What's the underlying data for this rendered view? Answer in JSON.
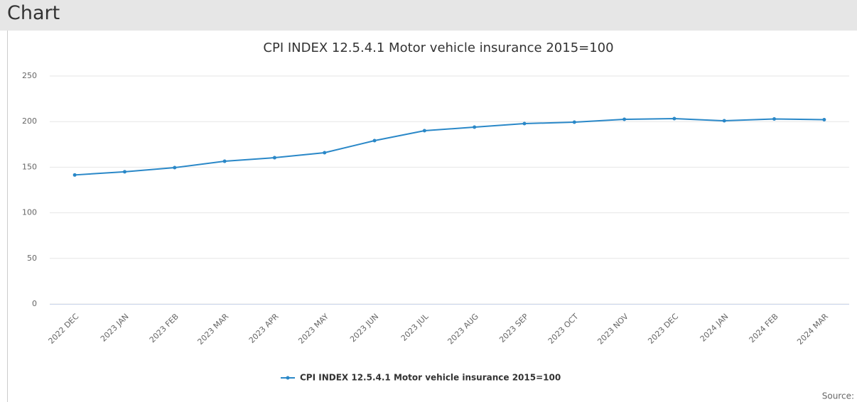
{
  "header": {
    "title": "Chart"
  },
  "source": "Source:",
  "chart_data": {
    "type": "line",
    "title": "CPI INDEX 12.5.4.1 Motor vehicle insurance 2015=100",
    "categories": [
      "2022 DEC",
      "2023 JAN",
      "2023 FEB",
      "2023 MAR",
      "2023 APR",
      "2023 MAY",
      "2023 JUN",
      "2023 JUL",
      "2023 AUG",
      "2023 SEP",
      "2023 OCT",
      "2023 NOV",
      "2023 DEC",
      "2024 JAN",
      "2024 FEB",
      "2024 MAR"
    ],
    "series": [
      {
        "name": "CPI INDEX 12.5.4.1 Motor vehicle insurance 2015=100",
        "color": "#2a88c8",
        "values": [
          141.5,
          145,
          149.5,
          156.5,
          160.4,
          165.9,
          179.1,
          190,
          193.9,
          197.8,
          199.4,
          202.5,
          203.3,
          200.9,
          202.9,
          202.1
        ]
      }
    ],
    "ylim": [
      0,
      250
    ],
    "yticks": [
      0,
      50,
      100,
      150,
      200,
      250
    ],
    "grid": true,
    "legend": "bottom"
  }
}
